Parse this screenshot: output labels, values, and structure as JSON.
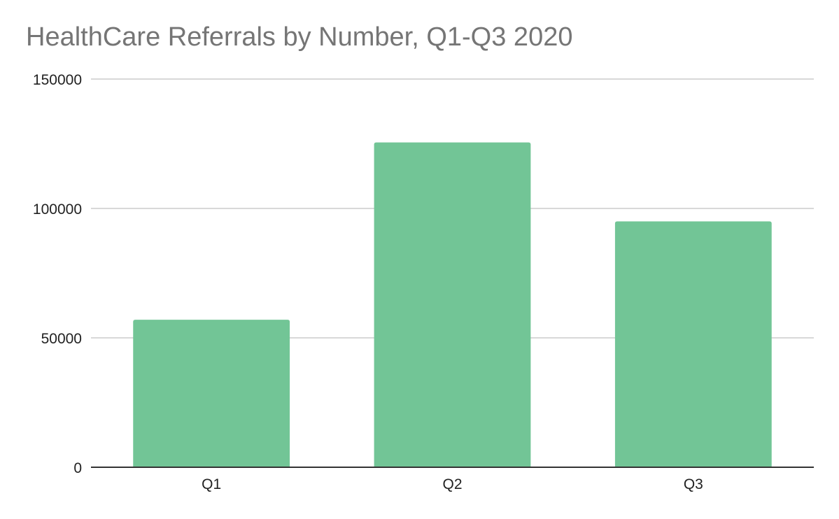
{
  "chart_data": {
    "type": "bar",
    "title": "HealthCare Referrals by Number, Q1-Q3 2020",
    "categories": [
      "Q1",
      "Q2",
      "Q3"
    ],
    "values": [
      57000,
      125500,
      95000
    ],
    "ylim": [
      0,
      150000
    ],
    "yticks": [
      "0",
      "50000",
      "100000",
      "150000"
    ],
    "grid": true,
    "legend": "none",
    "colors": {
      "bar": "#72c596",
      "gridline": "#cccccc",
      "axis": "#333333",
      "title": "#757575",
      "tick_label": "#222222"
    }
  }
}
